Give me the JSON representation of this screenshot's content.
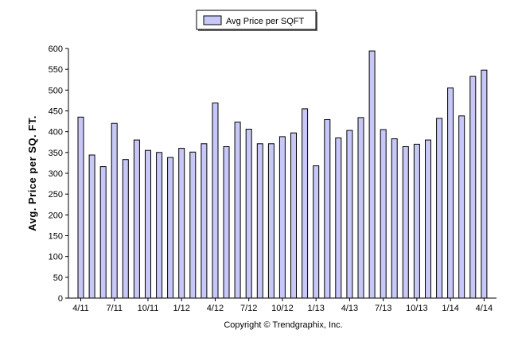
{
  "chart_data": {
    "type": "bar",
    "ylabel": "Avg. Price per SQ. FT.",
    "xlabel": "",
    "ylim": [
      0,
      600
    ],
    "yticks": [
      0,
      50,
      100,
      150,
      200,
      250,
      300,
      350,
      400,
      450,
      500,
      550,
      600
    ],
    "grid": false,
    "legend_position": "top-center",
    "bar_color": "#c8c8f8",
    "series": [
      {
        "name": "Avg Price per SQFT",
        "values": [
          435,
          344,
          316,
          420,
          333,
          380,
          355,
          350,
          338,
          360,
          351,
          371,
          469,
          364,
          423,
          406,
          371,
          371,
          388,
          397,
          455,
          318,
          429,
          385,
          403,
          434,
          594,
          405,
          383,
          364,
          370,
          380,
          432,
          505,
          438,
          533,
          548
        ]
      }
    ],
    "categories": [
      "Apr 2011",
      "May 2011",
      "Jun 2011",
      "Jul 2011",
      "Aug 2011",
      "Sep 2011",
      "Oct 2011",
      "Nov 2011",
      "Dec 2011",
      "Jan 2012",
      "Feb 2012",
      "Mar 2012",
      "Apr 2012",
      "May 2012",
      "Jun 2012",
      "Jul 2012",
      "Aug 2012",
      "Sep 2012",
      "Oct 2012",
      "Nov 2012",
      "Dec 2012",
      "Jan 2013",
      "Feb 2013",
      "Mar 2013",
      "Apr 2013",
      "May 2013",
      "Jun 2013",
      "Jul 2013",
      "Aug 2013",
      "Sep 2013",
      "Oct 2013",
      "Nov 2013",
      "Dec 2013",
      "Jan 2014",
      "Feb 2014",
      "Mar 2014",
      "Apr 2014"
    ],
    "xtick_labels": [
      {
        "index": 0,
        "label": "4/11"
      },
      {
        "index": 3,
        "label": "7/11"
      },
      {
        "index": 6,
        "label": "10/11"
      },
      {
        "index": 9,
        "label": "1/12"
      },
      {
        "index": 12,
        "label": "4/12"
      },
      {
        "index": 15,
        "label": "7/12"
      },
      {
        "index": 18,
        "label": "10/12"
      },
      {
        "index": 21,
        "label": "1/13"
      },
      {
        "index": 24,
        "label": "4/13"
      },
      {
        "index": 27,
        "label": "7/13"
      },
      {
        "index": 30,
        "label": "10/13"
      },
      {
        "index": 33,
        "label": "1/14"
      },
      {
        "index": 36,
        "label": "4/14"
      }
    ]
  },
  "footer": {
    "copyright": "Copyright © Trendgraphix, Inc."
  }
}
